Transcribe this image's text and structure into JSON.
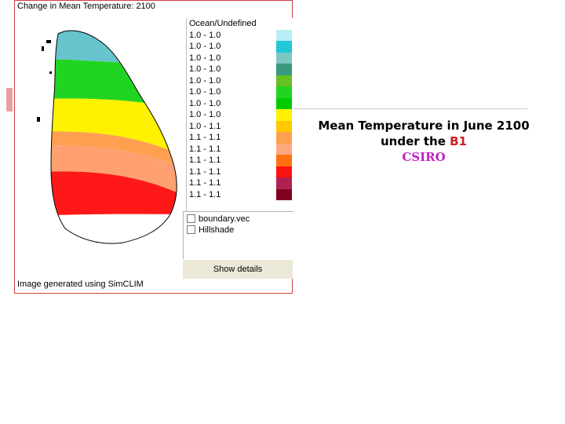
{
  "window": {
    "title": "Change in Mean Temperature: 2100",
    "footer": "Image generated using SimCLIM",
    "show_details_label": "Show details"
  },
  "legend": {
    "items": [
      {
        "label": "Ocean/Undefined",
        "color": "#ffffff"
      },
      {
        "label": "1.0 - 1.0",
        "color": "#b8eef4"
      },
      {
        "label": "1.0 - 1.0",
        "color": "#20c8d8"
      },
      {
        "label": "1.0 - 1.0",
        "color": "#7cc8c0"
      },
      {
        "label": "1.0 - 1.0",
        "color": "#3a9a80"
      },
      {
        "label": "1.0 - 1.0",
        "color": "#66c020"
      },
      {
        "label": "1.0 - 1.0",
        "color": "#22d422"
      },
      {
        "label": "1.0 - 1.0",
        "color": "#00cc00"
      },
      {
        "label": "1.0 - 1.0",
        "color": "#fff200"
      },
      {
        "label": "1.0 - 1.1",
        "color": "#ffc800"
      },
      {
        "label": "1.1 - 1.1",
        "color": "#ffa050"
      },
      {
        "label": "1.1 - 1.1",
        "color": "#ffa880"
      },
      {
        "label": "1.1 - 1.1",
        "color": "#ff7010"
      },
      {
        "label": "1.1 - 1.1",
        "color": "#ff1010"
      },
      {
        "label": "1.1 - 1.1",
        "color": "#b02050"
      },
      {
        "label": "1.1 - 1.1",
        "color": "#800020"
      }
    ]
  },
  "layers": [
    {
      "label": "boundary.vec",
      "checked": false
    },
    {
      "label": "Hillshade",
      "checked": false
    }
  ],
  "caption": {
    "line1": "Mean Temperature in June 2100",
    "line2_prefix": "under the ",
    "scenario": "B1",
    "model": "CSIRO"
  }
}
